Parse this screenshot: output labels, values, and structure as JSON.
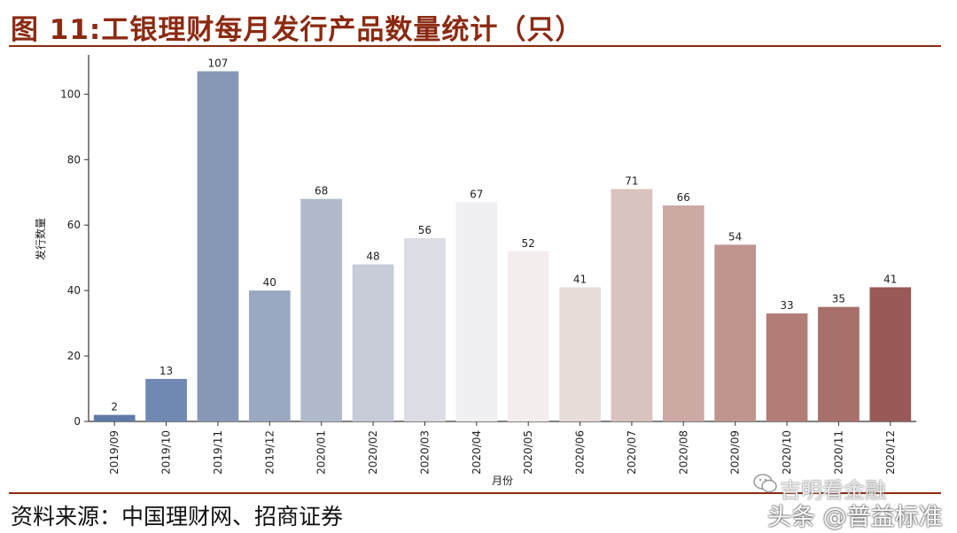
{
  "header": {
    "title": "图 11:工银理财每月发行产品数量统计（只）"
  },
  "footer": {
    "source": "资料来源：中国理财网、招商证券"
  },
  "watermark": {
    "line1": "吉明看金融",
    "line2": "头条 @普益标准",
    "icon": "wechat-icon"
  },
  "chart_data": {
    "type": "bar",
    "categories": [
      "2019/09",
      "2019/10",
      "2019/11",
      "2019/12",
      "2020/01",
      "2020/02",
      "2020/03",
      "2020/04",
      "2020/05",
      "2020/06",
      "2020/07",
      "2020/08",
      "2020/09",
      "2020/10",
      "2020/11",
      "2020/12"
    ],
    "values": [
      2,
      13,
      107,
      40,
      68,
      48,
      56,
      67,
      52,
      41,
      71,
      66,
      54,
      33,
      35,
      41
    ],
    "colors": [
      "#5f7aa6",
      "#6f89b3",
      "#8798b6",
      "#9ba8c2",
      "#b0bacc",
      "#c7ccd8",
      "#dcdde4",
      "#f0eff1",
      "#f3eded",
      "#e8dcd9",
      "#d8c3be",
      "#cca9a3",
      "#bf958e",
      "#b37d77",
      "#a8706b",
      "#985a57"
    ],
    "xlabel": "月份",
    "ylabel": "发行数量",
    "yticks": [
      0,
      20,
      40,
      60,
      80,
      100
    ],
    "ylim": [
      0,
      112
    ],
    "grid": false,
    "legend": "none"
  }
}
